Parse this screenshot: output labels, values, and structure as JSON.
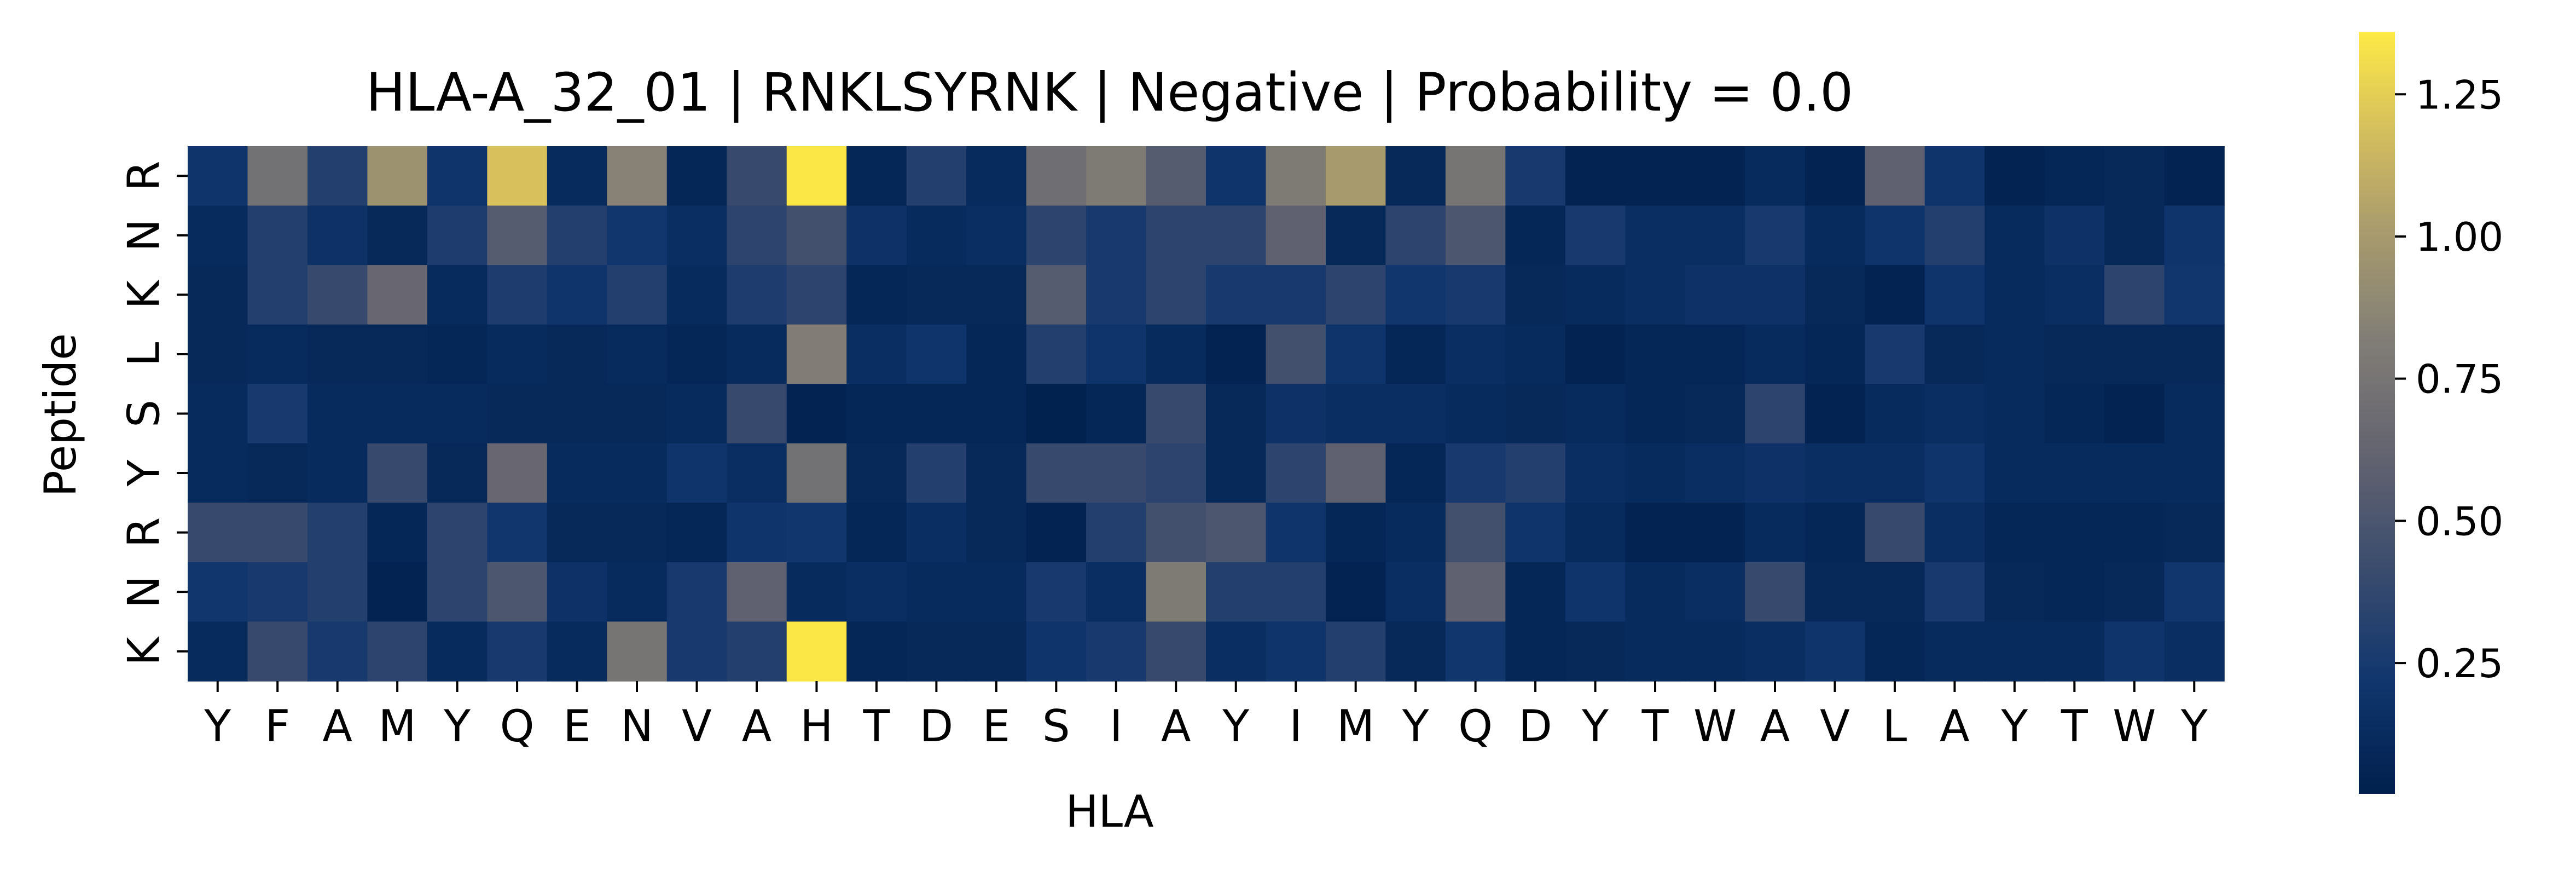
{
  "chart_data": {
    "type": "heatmap",
    "title": "HLA-A_32_01 | RNKLSYRNK | Negative | Probability = 0.0",
    "xlabel": "HLA",
    "ylabel": "Peptide",
    "x_categories": [
      "Y",
      "F",
      "A",
      "M",
      "Y",
      "Q",
      "E",
      "N",
      "V",
      "A",
      "H",
      "T",
      "D",
      "E",
      "S",
      "I",
      "A",
      "Y",
      "I",
      "M",
      "Y",
      "Q",
      "D",
      "Y",
      "T",
      "W",
      "A",
      "V",
      "L",
      "A",
      "Y",
      "T",
      "W",
      "Y"
    ],
    "y_categories": [
      "R",
      "N",
      "K",
      "L",
      "S",
      "Y",
      "R",
      "N",
      "K"
    ],
    "values": [
      [
        0.2,
        0.72,
        0.3,
        0.95,
        0.2,
        1.2,
        0.12,
        0.85,
        0.08,
        0.4,
        1.35,
        0.08,
        0.3,
        0.12,
        0.7,
        0.8,
        0.55,
        0.2,
        0.8,
        1.0,
        0.1,
        0.75,
        0.25,
        0.05,
        0.05,
        0.05,
        0.12,
        0.05,
        0.6,
        0.2,
        0.05,
        0.08,
        0.1,
        0.05
      ],
      [
        0.12,
        0.3,
        0.18,
        0.1,
        0.28,
        0.55,
        0.3,
        0.22,
        0.15,
        0.35,
        0.45,
        0.18,
        0.12,
        0.15,
        0.35,
        0.25,
        0.35,
        0.35,
        0.6,
        0.1,
        0.35,
        0.5,
        0.08,
        0.25,
        0.15,
        0.15,
        0.25,
        0.12,
        0.2,
        0.3,
        0.12,
        0.18,
        0.1,
        0.2
      ],
      [
        0.1,
        0.3,
        0.4,
        0.65,
        0.12,
        0.28,
        0.2,
        0.3,
        0.12,
        0.28,
        0.35,
        0.08,
        0.1,
        0.1,
        0.55,
        0.25,
        0.35,
        0.25,
        0.25,
        0.35,
        0.22,
        0.25,
        0.1,
        0.12,
        0.15,
        0.18,
        0.18,
        0.1,
        0.05,
        0.2,
        0.12,
        0.15,
        0.35,
        0.22
      ],
      [
        0.1,
        0.12,
        0.1,
        0.1,
        0.08,
        0.12,
        0.1,
        0.12,
        0.08,
        0.12,
        0.82,
        0.15,
        0.2,
        0.08,
        0.3,
        0.2,
        0.12,
        0.05,
        0.45,
        0.2,
        0.08,
        0.15,
        0.12,
        0.05,
        0.08,
        0.08,
        0.12,
        0.08,
        0.25,
        0.1,
        0.12,
        0.1,
        0.1,
        0.1
      ],
      [
        0.12,
        0.25,
        0.12,
        0.12,
        0.12,
        0.1,
        0.1,
        0.1,
        0.12,
        0.4,
        0.05,
        0.08,
        0.08,
        0.08,
        0.03,
        0.08,
        0.4,
        0.1,
        0.18,
        0.15,
        0.15,
        0.12,
        0.1,
        0.12,
        0.08,
        0.1,
        0.35,
        0.05,
        0.12,
        0.15,
        0.12,
        0.08,
        0.05,
        0.12
      ],
      [
        0.12,
        0.1,
        0.12,
        0.4,
        0.1,
        0.65,
        0.12,
        0.12,
        0.2,
        0.15,
        0.72,
        0.1,
        0.3,
        0.1,
        0.4,
        0.4,
        0.35,
        0.1,
        0.35,
        0.6,
        0.08,
        0.25,
        0.3,
        0.15,
        0.12,
        0.15,
        0.18,
        0.15,
        0.15,
        0.2,
        0.12,
        0.12,
        0.12,
        0.12
      ],
      [
        0.4,
        0.4,
        0.3,
        0.08,
        0.35,
        0.22,
        0.1,
        0.1,
        0.08,
        0.2,
        0.22,
        0.08,
        0.15,
        0.1,
        0.05,
        0.3,
        0.45,
        0.5,
        0.2,
        0.08,
        0.12,
        0.45,
        0.2,
        0.12,
        0.05,
        0.05,
        0.12,
        0.08,
        0.4,
        0.15,
        0.08,
        0.08,
        0.08,
        0.1
      ],
      [
        0.22,
        0.25,
        0.3,
        0.05,
        0.35,
        0.5,
        0.18,
        0.12,
        0.25,
        0.6,
        0.12,
        0.15,
        0.12,
        0.12,
        0.25,
        0.15,
        0.8,
        0.3,
        0.3,
        0.05,
        0.15,
        0.6,
        0.08,
        0.2,
        0.12,
        0.15,
        0.4,
        0.1,
        0.1,
        0.25,
        0.1,
        0.08,
        0.1,
        0.22
      ],
      [
        0.12,
        0.4,
        0.25,
        0.35,
        0.12,
        0.25,
        0.12,
        0.75,
        0.25,
        0.3,
        1.35,
        0.08,
        0.1,
        0.1,
        0.2,
        0.25,
        0.4,
        0.15,
        0.2,
        0.3,
        0.1,
        0.22,
        0.08,
        0.1,
        0.12,
        0.12,
        0.15,
        0.2,
        0.08,
        0.12,
        0.12,
        0.12,
        0.2,
        0.15
      ]
    ],
    "colormap": "cividis",
    "vmin": 0.02,
    "vmax": 1.36,
    "colorbar_ticks": [
      0.25,
      0.5,
      0.75,
      1.0,
      1.25
    ],
    "colorbar_tick_labels": [
      "0.25",
      "0.50",
      "0.75",
      "1.00",
      "1.25"
    ],
    "grid": false,
    "legend": "colorbar-right"
  }
}
